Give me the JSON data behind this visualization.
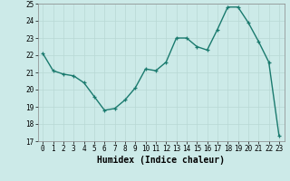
{
  "x": [
    0,
    1,
    2,
    3,
    4,
    5,
    6,
    7,
    8,
    9,
    10,
    11,
    12,
    13,
    14,
    15,
    16,
    17,
    18,
    19,
    20,
    21,
    22,
    23
  ],
  "y": [
    22.1,
    21.1,
    20.9,
    20.8,
    20.4,
    19.6,
    18.8,
    18.9,
    19.4,
    20.1,
    21.2,
    21.1,
    21.6,
    23.0,
    23.0,
    22.5,
    22.3,
    23.5,
    24.8,
    24.8,
    23.9,
    22.8,
    21.6,
    17.3
  ],
  "line_color": "#1a7a6e",
  "marker": "+",
  "markersize": 3,
  "linewidth": 1.0,
  "xlabel": "Humidex (Indice chaleur)",
  "ylim": [
    17,
    25
  ],
  "yticks": [
    17,
    18,
    19,
    20,
    21,
    22,
    23,
    24,
    25
  ],
  "xticks": [
    0,
    1,
    2,
    3,
    4,
    5,
    6,
    7,
    8,
    9,
    10,
    11,
    12,
    13,
    14,
    15,
    16,
    17,
    18,
    19,
    20,
    21,
    22,
    23
  ],
  "xtick_labels": [
    "0",
    "1",
    "2",
    "3",
    "4",
    "5",
    "6",
    "7",
    "8",
    "9",
    "10",
    "11",
    "12",
    "13",
    "14",
    "15",
    "16",
    "17",
    "18",
    "19",
    "20",
    "21",
    "22",
    "23"
  ],
  "bg_color": "#cceae8",
  "grid_color": "#b8d8d5",
  "fig_bg": "#cceae8",
  "spine_color": "#888888",
  "tick_label_fontsize": 5.5,
  "xlabel_fontsize": 7.0
}
